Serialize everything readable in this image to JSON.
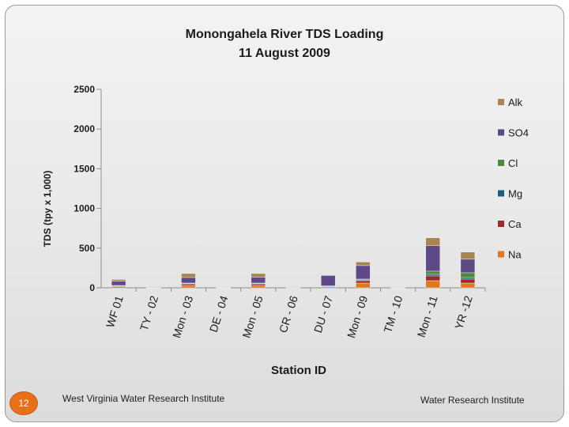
{
  "slide": {
    "page_number": "12",
    "footer_left": "West Virginia Water Research Institute",
    "footer_right": "Water Research Institute"
  },
  "chart_data": {
    "type": "bar",
    "stacked": true,
    "title_line1": "Monongahela River TDS Loading",
    "title_line2": "11 August 2009",
    "xlabel": "Station ID",
    "ylabel": "TDS (tpy x 1,000)",
    "ylim": [
      0,
      2500
    ],
    "yticks": [
      0,
      500,
      1000,
      1500,
      2000,
      2500
    ],
    "grid": false,
    "legend_position": "right",
    "categories": [
      "WF 01",
      "TY - 02",
      "Mon - 03",
      "DE - 04",
      "Mon - 05",
      "CR - 06",
      "DU - 07",
      "Mon - 09",
      "TM - 10",
      "Mon - 11",
      "YR -12"
    ],
    "series": [
      {
        "name": "Na",
        "color": "#e0771f",
        "values": [
          15,
          3,
          30,
          0,
          30,
          0,
          15,
          60,
          0,
          90,
          60
        ]
      },
      {
        "name": "Ca",
        "color": "#9b2a2a",
        "values": [
          10,
          2,
          20,
          0,
          20,
          0,
          5,
          30,
          0,
          60,
          50
        ]
      },
      {
        "name": "Mg",
        "color": "#1e5b7a",
        "values": [
          3,
          1,
          5,
          0,
          5,
          0,
          2,
          10,
          0,
          20,
          20
        ]
      },
      {
        "name": "Cl",
        "color": "#4e8a3a",
        "values": [
          2,
          1,
          5,
          0,
          5,
          0,
          3,
          10,
          0,
          40,
          60
        ]
      },
      {
        "name": "SO4",
        "color": "#5b4a86",
        "values": [
          55,
          5,
          70,
          2,
          75,
          3,
          130,
          170,
          2,
          320,
          170
        ]
      },
      {
        "name": "Alk",
        "color": "#a88451",
        "values": [
          20,
          3,
          50,
          2,
          45,
          2,
          0,
          45,
          2,
          100,
          90
        ]
      }
    ],
    "legend_order": [
      "Alk",
      "SO4",
      "Cl",
      "Mg",
      "Ca",
      "Na"
    ]
  }
}
